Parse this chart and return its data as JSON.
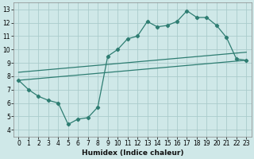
{
  "xlabel": "Humidex (Indice chaleur)",
  "bg_color": "#cfe8e8",
  "grid_color": "#aacccc",
  "line_color": "#2e7d72",
  "xlim": [
    -0.5,
    23.5
  ],
  "ylim": [
    3.5,
    13.5
  ],
  "xticks": [
    0,
    1,
    2,
    3,
    4,
    5,
    6,
    7,
    8,
    9,
    10,
    11,
    12,
    13,
    14,
    15,
    16,
    17,
    18,
    19,
    20,
    21,
    22,
    23
  ],
  "yticks": [
    4,
    5,
    6,
    7,
    8,
    9,
    10,
    11,
    12,
    13
  ],
  "line1_x": [
    0,
    1,
    2,
    3,
    4,
    5,
    6,
    7,
    8,
    9,
    10,
    11,
    12,
    13,
    14,
    15,
    16,
    17,
    18,
    19,
    20,
    21,
    22,
    23
  ],
  "line1_y": [
    7.7,
    7.0,
    6.5,
    6.2,
    6.0,
    4.4,
    4.8,
    4.9,
    5.7,
    9.5,
    10.0,
    10.8,
    11.0,
    12.1,
    11.7,
    11.8,
    12.1,
    12.9,
    12.4,
    12.4,
    11.8,
    10.9,
    9.3,
    9.2
  ],
  "line2_x": [
    0,
    23
  ],
  "line2_y": [
    7.7,
    9.2
  ],
  "line3_x": [
    0,
    23
  ],
  "line3_y": [
    8.3,
    9.8
  ],
  "tick_fontsize": 5.5,
  "xlabel_fontsize": 6.5,
  "lw": 0.9,
  "ms": 2.2
}
